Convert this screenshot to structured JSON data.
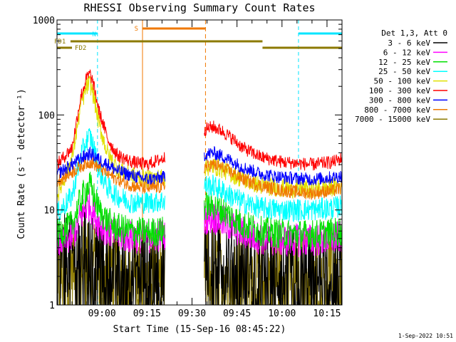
{
  "colors": {
    "background": "#ffffff",
    "axis": "#000000",
    "night": "#00e5ff",
    "saa": "#f07800",
    "flag": "#8c7a00"
  },
  "chart_data": {
    "type": "line",
    "title": "RHESSI Observing Summary Count Rates",
    "xlabel": "Start Time (15-Sep-16 08:45:22)",
    "ylabel": "Count Rate (s⁻¹ detector⁻¹)",
    "yscale": "log",
    "ylim": [
      1,
      1000
    ],
    "xlim_minutes_after_0845": [
      0,
      95
    ],
    "x_tick_labels": [
      {
        "label": "09:00",
        "t": 15
      },
      {
        "label": "09:15",
        "t": 30
      },
      {
        "label": "09:30",
        "t": 45
      },
      {
        "label": "09:45",
        "t": 60
      },
      {
        "label": "10:00",
        "t": 75
      },
      {
        "label": "10:15",
        "t": 90
      }
    ],
    "y_tick_labels": [
      {
        "label": "1",
        "v": 1
      },
      {
        "label": "10",
        "v": 10
      },
      {
        "label": "100",
        "v": 100
      },
      {
        "label": "1000",
        "v": 1000
      }
    ],
    "legend_title": "Det 1,3, Att 0",
    "legend_placement": "right",
    "data_gaps_minutes": [
      [
        36,
        49
      ]
    ],
    "series": [
      {
        "name": "3 - 6 keV",
        "color": "#000000",
        "points": [
          [
            0,
            3.5
          ],
          [
            5,
            3.2
          ],
          [
            8,
            4.2
          ],
          [
            10,
            4.5
          ],
          [
            12,
            4.0
          ],
          [
            16,
            3.2
          ],
          [
            20,
            2.6
          ],
          [
            25,
            2.4
          ],
          [
            30,
            2.4
          ],
          [
            33,
            2.4
          ],
          [
            35.5,
            2.4
          ],
          [
            49,
            3.4
          ],
          [
            52,
            3.6
          ],
          [
            55,
            3.3
          ],
          [
            58,
            3.0
          ],
          [
            62,
            2.6
          ],
          [
            68,
            2.3
          ],
          [
            75,
            2.2
          ],
          [
            85,
            2.1
          ],
          [
            92,
            2.2
          ],
          [
            95,
            2.2
          ]
        ]
      },
      {
        "name": "6 - 12 keV",
        "color": "#ff00ff",
        "points": [
          [
            0,
            4.5
          ],
          [
            5,
            5.2
          ],
          [
            8,
            8.5
          ],
          [
            10,
            11
          ],
          [
            11,
            11.5
          ],
          [
            12,
            9.5
          ],
          [
            14,
            7.2
          ],
          [
            17,
            6.0
          ],
          [
            20,
            5.4
          ],
          [
            25,
            5.2
          ],
          [
            30,
            5.2
          ],
          [
            35.5,
            5.5
          ],
          [
            49,
            8.2
          ],
          [
            52,
            8.4
          ],
          [
            55,
            7.6
          ],
          [
            58,
            6.8
          ],
          [
            62,
            5.8
          ],
          [
            68,
            5.0
          ],
          [
            75,
            4.8
          ],
          [
            85,
            4.8
          ],
          [
            92,
            5.0
          ],
          [
            95,
            5.2
          ]
        ]
      },
      {
        "name": "12 - 25 keV",
        "color": "#00e000",
        "points": [
          [
            0,
            5.5
          ],
          [
            5,
            7
          ],
          [
            8,
            13
          ],
          [
            10,
            17
          ],
          [
            11,
            18
          ],
          [
            12,
            15
          ],
          [
            14,
            10
          ],
          [
            17,
            7.5
          ],
          [
            20,
            6.5
          ],
          [
            25,
            6.0
          ],
          [
            30,
            5.8
          ],
          [
            35.5,
            6.0
          ],
          [
            49,
            11
          ],
          [
            52,
            11
          ],
          [
            55,
            10
          ],
          [
            58,
            8.5
          ],
          [
            62,
            7.0
          ],
          [
            68,
            6.0
          ],
          [
            75,
            5.6
          ],
          [
            85,
            5.5
          ],
          [
            92,
            5.8
          ],
          [
            95,
            6.0
          ]
        ]
      },
      {
        "name": "25 - 50 keV",
        "color": "#00ffff",
        "points": [
          [
            0,
            9
          ],
          [
            5,
            14
          ],
          [
            8,
            38
          ],
          [
            10,
            55
          ],
          [
            11,
            60
          ],
          [
            12,
            48
          ],
          [
            14,
            26
          ],
          [
            17,
            17
          ],
          [
            20,
            14
          ],
          [
            25,
            12
          ],
          [
            30,
            12
          ],
          [
            35.5,
            12.5
          ],
          [
            49,
            18
          ],
          [
            52,
            18
          ],
          [
            55,
            16
          ],
          [
            58,
            14
          ],
          [
            62,
            12
          ],
          [
            68,
            10.5
          ],
          [
            75,
            10
          ],
          [
            85,
            10
          ],
          [
            92,
            10.5
          ],
          [
            95,
            11
          ]
        ]
      },
      {
        "name": "50 - 100 keV",
        "color": "#e0e000",
        "points": [
          [
            0,
            14
          ],
          [
            5,
            35
          ],
          [
            8,
            130
          ],
          [
            10,
            200
          ],
          [
            11,
            215
          ],
          [
            12,
            170
          ],
          [
            14,
            80
          ],
          [
            17,
            38
          ],
          [
            20,
            28
          ],
          [
            25,
            23
          ],
          [
            30,
            21
          ],
          [
            35.5,
            22
          ],
          [
            49,
            28
          ],
          [
            52,
            29
          ],
          [
            55,
            27
          ],
          [
            58,
            24
          ],
          [
            62,
            21
          ],
          [
            68,
            18
          ],
          [
            75,
            17
          ],
          [
            85,
            16.5
          ],
          [
            92,
            17.5
          ],
          [
            95,
            18
          ]
        ]
      },
      {
        "name": "100 - 300 keV",
        "color": "#ff0000",
        "points": [
          [
            0,
            30
          ],
          [
            5,
            45
          ],
          [
            8,
            160
          ],
          [
            10,
            250
          ],
          [
            11,
            270
          ],
          [
            12,
            220
          ],
          [
            14,
            110
          ],
          [
            17,
            55
          ],
          [
            20,
            38
          ],
          [
            25,
            32
          ],
          [
            30,
            30
          ],
          [
            35.5,
            35
          ],
          [
            49,
            70
          ],
          [
            52,
            75
          ],
          [
            55,
            68
          ],
          [
            58,
            58
          ],
          [
            62,
            45
          ],
          [
            68,
            36
          ],
          [
            75,
            32
          ],
          [
            85,
            30
          ],
          [
            92,
            32
          ],
          [
            95,
            35
          ]
        ]
      },
      {
        "name": "300 - 800 keV",
        "color": "#0000ff",
        "points": [
          [
            0,
            24
          ],
          [
            5,
            30
          ],
          [
            8,
            35
          ],
          [
            10,
            38
          ],
          [
            11,
            39
          ],
          [
            12,
            38
          ],
          [
            14,
            34
          ],
          [
            17,
            30
          ],
          [
            20,
            26
          ],
          [
            25,
            23
          ],
          [
            30,
            21
          ],
          [
            35.5,
            22
          ],
          [
            49,
            38
          ],
          [
            52,
            40
          ],
          [
            55,
            37
          ],
          [
            58,
            33
          ],
          [
            62,
            28
          ],
          [
            68,
            24
          ],
          [
            75,
            22
          ],
          [
            85,
            21
          ],
          [
            92,
            22
          ],
          [
            95,
            23
          ]
        ]
      },
      {
        "name": "800 - 7000 keV",
        "color": "#f07800",
        "points": [
          [
            0,
            20
          ],
          [
            5,
            25
          ],
          [
            8,
            29
          ],
          [
            10,
            31
          ],
          [
            11,
            32
          ],
          [
            12,
            31
          ],
          [
            14,
            28
          ],
          [
            17,
            24
          ],
          [
            20,
            21
          ],
          [
            25,
            18
          ],
          [
            30,
            17
          ],
          [
            35.5,
            17.5
          ],
          [
            49,
            28
          ],
          [
            52,
            30
          ],
          [
            55,
            28
          ],
          [
            58,
            25
          ],
          [
            62,
            21
          ],
          [
            68,
            18
          ],
          [
            75,
            16
          ],
          [
            85,
            15
          ],
          [
            92,
            16
          ],
          [
            95,
            17
          ]
        ]
      },
      {
        "name": "7000 - 15000 keV",
        "color": "#8c7a00",
        "points": [
          [
            0,
            2.6
          ],
          [
            5,
            2.7
          ],
          [
            8,
            2.8
          ],
          [
            10,
            3.0
          ],
          [
            12,
            2.9
          ],
          [
            16,
            2.7
          ],
          [
            20,
            2.5
          ],
          [
            25,
            2.4
          ],
          [
            30,
            2.4
          ],
          [
            35.5,
            2.5
          ],
          [
            49,
            2.6
          ],
          [
            55,
            2.6
          ],
          [
            62,
            2.4
          ],
          [
            70,
            2.2
          ],
          [
            80,
            2.2
          ],
          [
            90,
            2.3
          ],
          [
            95,
            2.4
          ]
        ]
      }
    ],
    "annotations": [
      {
        "label": "N",
        "kind": "night",
        "t_start": 0,
        "t_end": 13.5
      },
      {
        "label": "",
        "kind": "night",
        "t_start": 80.5,
        "t_end": 95
      },
      {
        "label": "S",
        "kind": "saa",
        "t_start": 28.5,
        "t_end": 49.5
      },
      {
        "label": "FD1",
        "kind": "flag",
        "t_start": 4.5,
        "t_end": 68.5
      },
      {
        "label": "",
        "kind": "flag",
        "t_start": 68.5,
        "t_end": 95
      },
      {
        "label": "FD2",
        "kind": "flag",
        "t_start": 0,
        "t_end": 5
      }
    ],
    "night_markers_minutes": [
      0,
      13.5,
      80.5,
      95
    ],
    "saa_markers_minutes": [
      28.5,
      49.5
    ]
  },
  "footer": {
    "timestamp": "1-Sep-2022 10:51"
  }
}
